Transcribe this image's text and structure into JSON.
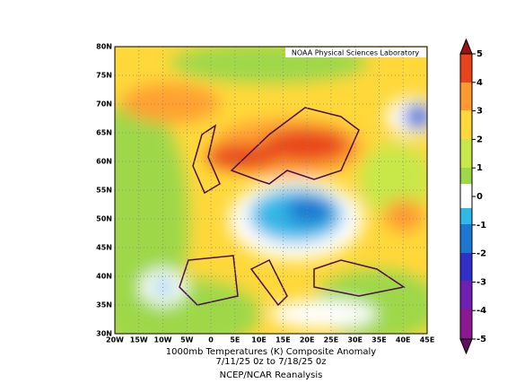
{
  "map": {
    "label": "NOAA Physical Sciences Laboratory",
    "lat_labels": [
      "80N",
      "75N",
      "70N",
      "65N",
      "60N",
      "55N",
      "50N",
      "45N",
      "40N",
      "35N",
      "30N"
    ],
    "lon_labels": [
      "20W",
      "15W",
      "10W",
      "5W",
      "0",
      "5E",
      "10E",
      "15E",
      "20E",
      "25E",
      "30E",
      "35E",
      "40E",
      "45E"
    ],
    "caption": [
      "1000mb Temperatures (K)   Composite Anomaly",
      "7/11/25 0z  to 7/18/25 0z"
    ],
    "source": "NCEP/NCAR Reanalysis",
    "colorbar": {
      "ticks": [
        5,
        4,
        3,
        2,
        1,
        0,
        -1,
        -2,
        -3,
        -4,
        -5
      ]
    }
  }
}
